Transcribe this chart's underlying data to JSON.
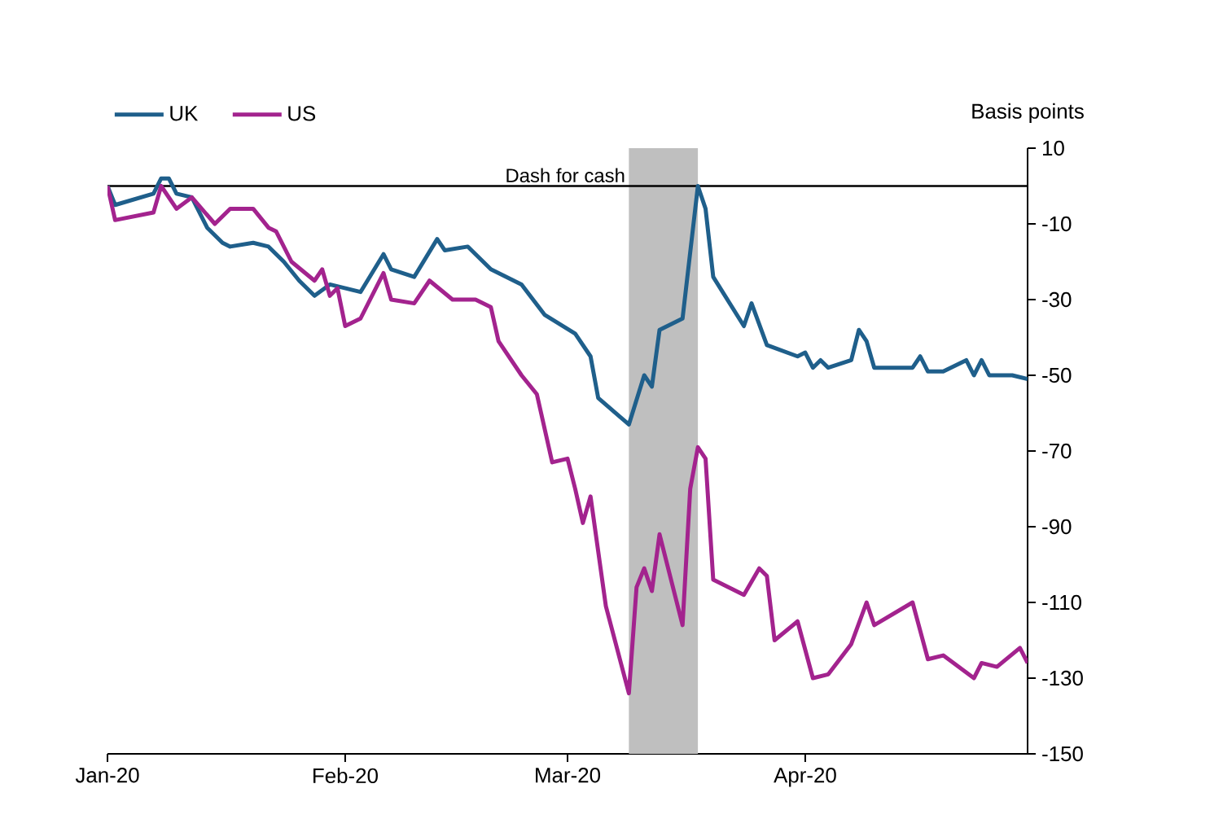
{
  "chart_data": {
    "type": "line",
    "ylabel": "Basis points",
    "xlim": [
      "2020-01-01",
      "2020-04-30"
    ],
    "xticks": [
      {
        "value": "2020-01-01",
        "label": "Jan-20"
      },
      {
        "value": "2020-02-01",
        "label": "Feb-20"
      },
      {
        "value": "2020-03-01",
        "label": "Mar-20"
      },
      {
        "value": "2020-04-01",
        "label": "Apr-20"
      }
    ],
    "ylim": [
      -150,
      10
    ],
    "yticks": [
      10,
      -10,
      -30,
      -50,
      -70,
      -90,
      -110,
      -130,
      -150
    ],
    "legend": "top left",
    "grid": false,
    "marker": "none",
    "line_style": "solid",
    "ref_lines": [
      {
        "axis": "y",
        "value": 0,
        "color": "#000000"
      }
    ],
    "bands": [
      {
        "axis": "x",
        "from": "2020-03-09",
        "to": "2020-03-18",
        "label": "Dash for cash",
        "color": "#bfbfbf"
      }
    ],
    "series": [
      {
        "name": "UK",
        "color": "#1f5f8b",
        "x": [
          "2020-01-01",
          "2020-01-02",
          "2020-01-07",
          "2020-01-08",
          "2020-01-09",
          "2020-01-10",
          "2020-01-12",
          "2020-01-14",
          "2020-01-16",
          "2020-01-17",
          "2020-01-20",
          "2020-01-22",
          "2020-01-24",
          "2020-01-26",
          "2020-01-28",
          "2020-01-30",
          "2020-02-03",
          "2020-02-06",
          "2020-02-07",
          "2020-02-10",
          "2020-02-13",
          "2020-02-14",
          "2020-02-17",
          "2020-02-20",
          "2020-02-24",
          "2020-02-27",
          "2020-03-02",
          "2020-03-04",
          "2020-03-05",
          "2020-03-09",
          "2020-03-11",
          "2020-03-12",
          "2020-03-13",
          "2020-03-16",
          "2020-03-18",
          "2020-03-19",
          "2020-03-20",
          "2020-03-24",
          "2020-03-25",
          "2020-03-27",
          "2020-03-31",
          "2020-04-01",
          "2020-04-02",
          "2020-04-03",
          "2020-04-04",
          "2020-04-07",
          "2020-04-08",
          "2020-04-09",
          "2020-04-10",
          "2020-04-15",
          "2020-04-16",
          "2020-04-17",
          "2020-04-19",
          "2020-04-22",
          "2020-04-23",
          "2020-04-24",
          "2020-04-25",
          "2020-04-28",
          "2020-04-30"
        ],
        "values": [
          0,
          -5,
          -2,
          2,
          2,
          -2,
          -3,
          -11,
          -15,
          -16,
          -15,
          -16,
          -20,
          -25,
          -29,
          -26,
          -28,
          -18,
          -22,
          -24,
          -14,
          -17,
          -16,
          -22,
          -26,
          -34,
          -39,
          -45,
          -56,
          -63,
          -50,
          -53,
          -38,
          -35,
          0,
          -6,
          -24,
          -37,
          -31,
          -42,
          -45,
          -44,
          -48,
          -46,
          -48,
          -46,
          -38,
          -41,
          -48,
          -48,
          -45,
          -49,
          -49,
          -46,
          -50,
          -46,
          -50,
          -50,
          -51
        ]
      },
      {
        "name": "US",
        "color": "#a3238e",
        "x": [
          "2020-01-01",
          "2020-01-02",
          "2020-01-07",
          "2020-01-08",
          "2020-01-10",
          "2020-01-12",
          "2020-01-15",
          "2020-01-17",
          "2020-01-20",
          "2020-01-22",
          "2020-01-23",
          "2020-01-25",
          "2020-01-28",
          "2020-01-29",
          "2020-01-30",
          "2020-01-31",
          "2020-02-01",
          "2020-02-03",
          "2020-02-06",
          "2020-02-07",
          "2020-02-10",
          "2020-02-12",
          "2020-02-15",
          "2020-02-18",
          "2020-02-20",
          "2020-02-21",
          "2020-02-24",
          "2020-02-26",
          "2020-02-28",
          "2020-03-01",
          "2020-03-02",
          "2020-03-03",
          "2020-03-04",
          "2020-03-06",
          "2020-03-09",
          "2020-03-10",
          "2020-03-11",
          "2020-03-12",
          "2020-03-13",
          "2020-03-16",
          "2020-03-17",
          "2020-03-18",
          "2020-03-19",
          "2020-03-20",
          "2020-03-24",
          "2020-03-26",
          "2020-03-27",
          "2020-03-28",
          "2020-03-31",
          "2020-04-02",
          "2020-04-04",
          "2020-04-07",
          "2020-04-09",
          "2020-04-10",
          "2020-04-15",
          "2020-04-17",
          "2020-04-19",
          "2020-04-23",
          "2020-04-24",
          "2020-04-26",
          "2020-04-29",
          "2020-04-30"
        ],
        "values": [
          0,
          -9,
          -7,
          0,
          -6,
          -3,
          -10,
          -6,
          -6,
          -11,
          -12,
          -20,
          -25,
          -22,
          -29,
          -27,
          -37,
          -35,
          -23,
          -30,
          -31,
          -25,
          -30,
          -30,
          -32,
          -41,
          -50,
          -55,
          -73,
          -72,
          -80,
          -89,
          -82,
          -111,
          -134,
          -106,
          -101,
          -107,
          -92,
          -116,
          -80,
          -69,
          -72,
          -104,
          -108,
          -101,
          -103,
          -120,
          -115,
          -130,
          -129,
          -121,
          -110,
          -116,
          -110,
          -125,
          -124,
          -130,
          -126,
          -127,
          -122,
          -126
        ]
      }
    ]
  }
}
